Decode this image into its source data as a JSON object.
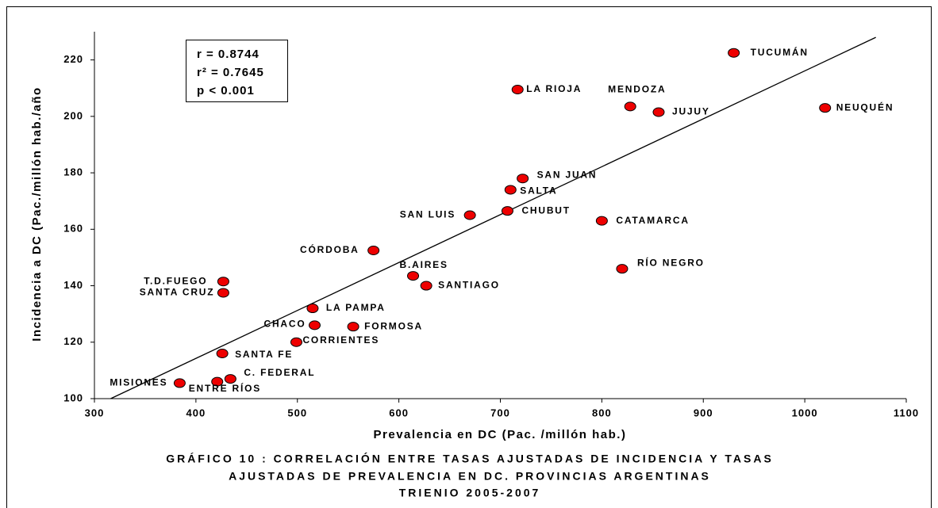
{
  "chart_data": {
    "type": "scatter",
    "title": [
      "GRÁFICO 10 : CORRELACIÓN ENTRE TASAS AJUSTADAS DE INCIDENCIA Y TASAS",
      "AJUSTADAS DE PREVALENCIA EN DC.  PROVINCIAS ARGENTINAS",
      "TRIENIO 2005-2007"
    ],
    "xlabel": "Prevalencia en DC (Pac. /millón hab.)",
    "ylabel": "Incidencia a DC (Pac./millón hab./año",
    "stats": [
      "r = 0.8744",
      "r² = 0.7645",
      "p < 0.001"
    ],
    "point_labels": [
      "TUCUMÁN",
      "LA RIOJA",
      "MENDOZA",
      "JUJUY",
      "NEUQUÉN",
      "SAN JUAN",
      "SALTA",
      "SAN LUIS",
      "CHUBUT",
      "CATAMARCA",
      "CÓRDOBA",
      "B.AIRES",
      "SANTIAGO",
      "RÍO NEGRO",
      "T.D.FUEGO",
      "SANTA CRUZ",
      "LA PAMPA",
      "CHACO",
      "FORMOSA",
      "CORRIENTES",
      "SANTA FE",
      "MISIONES",
      "ENTRE RÍOS",
      "C. FEDERAL"
    ],
    "x": [
      930,
      717,
      828,
      856,
      1020,
      722,
      710,
      670,
      707,
      800,
      575,
      614,
      627,
      820,
      427,
      427,
      515,
      517,
      555,
      499,
      426,
      384,
      421,
      434
    ],
    "values": [
      222.5,
      209.5,
      203.5,
      201.5,
      203,
      178,
      174,
      165,
      166.5,
      163,
      152.5,
      143.5,
      140,
      146,
      141.5,
      137.5,
      132,
      126,
      125.5,
      120,
      116,
      105.5,
      106,
      107
    ],
    "color": "#ee0000",
    "trendline": {
      "x": [
        316,
        1070
      ],
      "y": [
        100,
        228
      ]
    },
    "xlim": [
      300,
      1100
    ],
    "xticks": [
      300,
      400,
      500,
      600,
      700,
      800,
      900,
      1000,
      1100
    ],
    "ylim": [
      100,
      230
    ],
    "yticks": [
      100,
      120,
      140,
      160,
      180,
      200,
      220
    ]
  }
}
